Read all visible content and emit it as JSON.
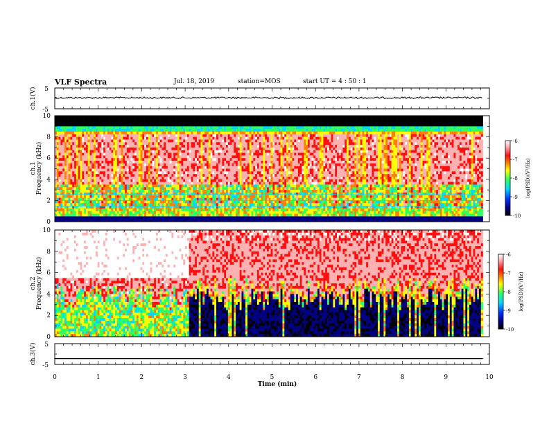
{
  "header": {
    "title": "VLF Spectra",
    "date": "Jul. 18, 2019",
    "station": "station=MOS",
    "start_ut": "start UT =  4 : 50 : 1"
  },
  "colormap": [
    "#000000",
    "#000080",
    "#0030ff",
    "#00d8ff",
    "#30ff60",
    "#ffff00",
    "#ff8000",
    "#ff1010",
    "#ffb0b0",
    "#ffffff"
  ],
  "chart_data": [
    {
      "id": "ch1-waveform",
      "type": "line",
      "ylabel": "ch.1(V)",
      "yticks": [
        "5",
        "-5"
      ],
      "ylim": [
        -5,
        5
      ],
      "xlim": [
        0,
        10
      ],
      "description_level": 0.3
    },
    {
      "id": "ch1-spectrogram",
      "type": "heatmap",
      "ylabel_line1": "ch.1",
      "ylabel_line2": "Frequency (kHz)",
      "yticks": [
        "0",
        "2",
        "4",
        "6",
        "8",
        "10"
      ],
      "ylim": [
        0,
        10
      ],
      "xlim": [
        0,
        9.85
      ],
      "colorbar": {
        "label": "log(PSD)(V²/Hz)",
        "ticks": [
          "-6",
          "-7",
          "-8",
          "-9",
          "-10"
        ],
        "range": [
          -10,
          -6
        ]
      }
    },
    {
      "id": "ch2-spectrogram",
      "type": "heatmap",
      "ylabel_line1": "ch.2",
      "ylabel_line2": "Frequency (kHz)",
      "yticks": [
        "0",
        "2",
        "4",
        "6",
        "8",
        "10"
      ],
      "ylim": [
        0,
        10
      ],
      "xlim": [
        0,
        9.85
      ],
      "colorbar": {
        "label": "log(PSD)(V²/Hz)",
        "ticks": [
          "-6",
          "-7",
          "-8",
          "-9",
          "-10"
        ],
        "range": [
          -10,
          -6
        ]
      }
    },
    {
      "id": "ch3-waveform",
      "type": "line",
      "ylabel": "ch.3(V)",
      "yticks": [
        "5",
        "-5"
      ],
      "ylim": [
        -5,
        5
      ],
      "xlim": [
        0,
        10
      ],
      "level": -2.2
    }
  ],
  "xaxis": {
    "label": "Time (min)",
    "ticks": [
      "0",
      "1",
      "2",
      "3",
      "4",
      "5",
      "6",
      "7",
      "8",
      "9",
      "10"
    ]
  }
}
